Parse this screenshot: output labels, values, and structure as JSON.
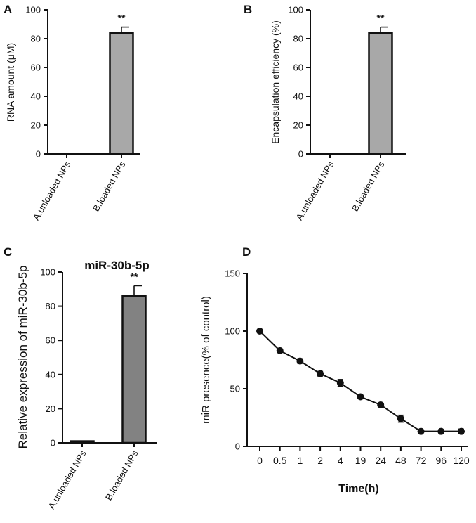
{
  "panels": {
    "a": "A",
    "b": "B",
    "c": "C",
    "d": "D"
  },
  "colors": {
    "bar_light": "#a8a8a8",
    "bar_dark": "#828282",
    "ink": "#111111"
  },
  "chart_data": [
    {
      "id": "A",
      "type": "bar",
      "title": "",
      "ylabel": "RNA amount (μM)",
      "xlabel": "",
      "ylim": [
        0,
        100
      ],
      "yticks": [
        0,
        20,
        40,
        60,
        80,
        100
      ],
      "categories": [
        "A.unloaded NPs",
        "B.loaded NPs"
      ],
      "values": [
        0,
        84
      ],
      "errors": [
        0,
        4
      ],
      "annotations": [
        "",
        "**"
      ]
    },
    {
      "id": "B",
      "type": "bar",
      "title": "",
      "ylabel": "Encapsulation efficiency (%)",
      "xlabel": "",
      "ylim": [
        0,
        100
      ],
      "yticks": [
        0,
        20,
        40,
        60,
        80,
        100
      ],
      "categories": [
        "A.unloaded NPs",
        "B.loaded NPs"
      ],
      "values": [
        0,
        84
      ],
      "errors": [
        0,
        4
      ],
      "annotations": [
        "",
        "**"
      ]
    },
    {
      "id": "C",
      "type": "bar",
      "title": "miR-30b-5p",
      "ylabel": "Relative expression of miR-30b-5p",
      "xlabel": "",
      "ylim": [
        0,
        100
      ],
      "yticks": [
        0,
        20,
        40,
        60,
        80,
        100
      ],
      "categories": [
        "A.unloaded NPs",
        "B.loaded NPs"
      ],
      "values": [
        1,
        86
      ],
      "errors": [
        0,
        6
      ],
      "annotations": [
        "",
        "**"
      ]
    },
    {
      "id": "D",
      "type": "line",
      "title": "",
      "ylabel": "miR presence(% of control)",
      "xlabel": "Time(h)",
      "ylim": [
        0,
        150
      ],
      "yticks": [
        0,
        50,
        100,
        150
      ],
      "categories": [
        "0",
        "0.5",
        "1",
        "2",
        "4",
        "19",
        "24",
        "48",
        "72",
        "96",
        "120"
      ],
      "values": [
        100,
        83,
        74,
        63,
        55,
        43,
        36,
        24,
        13,
        13,
        13
      ],
      "errors": [
        0,
        1.5,
        2,
        2,
        3,
        1.5,
        1.5,
        3,
        1,
        1.5,
        2
      ]
    }
  ]
}
